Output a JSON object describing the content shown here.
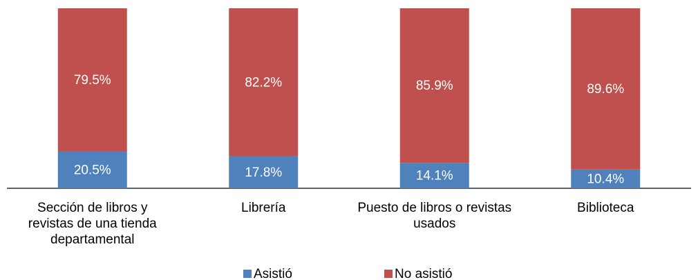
{
  "chart_data": {
    "type": "stacked_bar",
    "categories": [
      "Sección de libros y revistas de una tienda departamental",
      "Librería",
      "Puesto de libros o revistas usados",
      "Biblioteca"
    ],
    "series": [
      {
        "name": "Asistió",
        "color": "#4f81bd",
        "values": [
          20.5,
          17.8,
          14.1,
          10.4
        ],
        "value_labels": [
          "20.5%",
          "17.8%",
          "14.1%",
          "10.4%"
        ]
      },
      {
        "name": "No asistió",
        "color": "#c0504d",
        "values": [
          79.5,
          82.2,
          85.9,
          89.6
        ],
        "value_labels": [
          "79.5%",
          "82.2%",
          "85.9%",
          "89.6%"
        ]
      }
    ],
    "ylim": [
      0,
      100
    ],
    "legend": "bottom"
  }
}
